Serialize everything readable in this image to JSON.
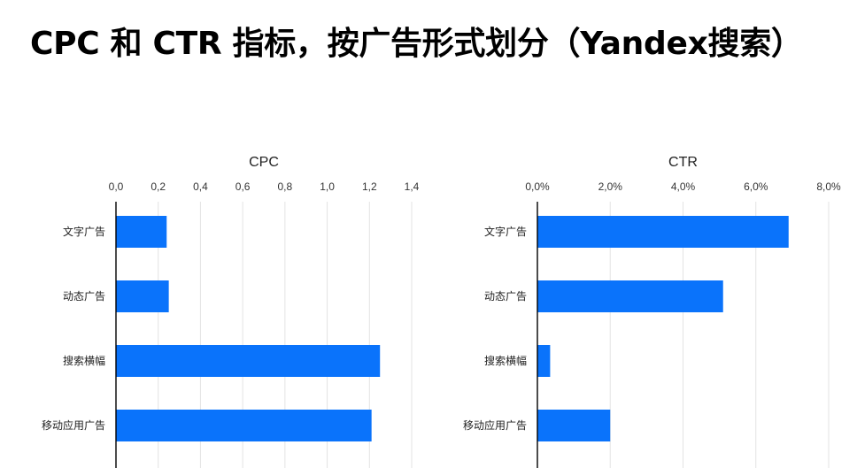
{
  "page": {
    "title": "CPC 和 CTR 指标，按广告形式划分（Yandex搜索）"
  },
  "chart_data": [
    {
      "type": "bar",
      "orientation": "horizontal",
      "title": "CPC",
      "categories": [
        "文字广告",
        "动态广告",
        "搜索横幅",
        "移动应用广告"
      ],
      "values": [
        0.24,
        0.25,
        1.25,
        1.21
      ],
      "xlim": [
        0,
        1.4
      ],
      "ticks": [
        0,
        0.2,
        0.4,
        0.6,
        0.8,
        1.0,
        1.2,
        1.4
      ],
      "tick_labels": [
        "0,0",
        "0,2",
        "0,4",
        "0,6",
        "0,8",
        "1,0",
        "1,2",
        "1,4"
      ],
      "axis_position": "top",
      "grid": true,
      "bar_color": "#0a73fb"
    },
    {
      "type": "bar",
      "orientation": "horizontal",
      "title": "CTR",
      "categories": [
        "文字广告",
        "动态广告",
        "搜索横幅",
        "移动应用广告"
      ],
      "values": [
        6.9,
        5.1,
        0.35,
        2.0
      ],
      "xlim": [
        0,
        8.0
      ],
      "ticks": [
        0,
        2,
        4,
        6,
        8
      ],
      "tick_labels": [
        "0,0%",
        "2,0%",
        "4,0%",
        "6,0%",
        "8,0%"
      ],
      "axis_position": "top",
      "grid": true,
      "bar_color": "#0a73fb"
    }
  ]
}
